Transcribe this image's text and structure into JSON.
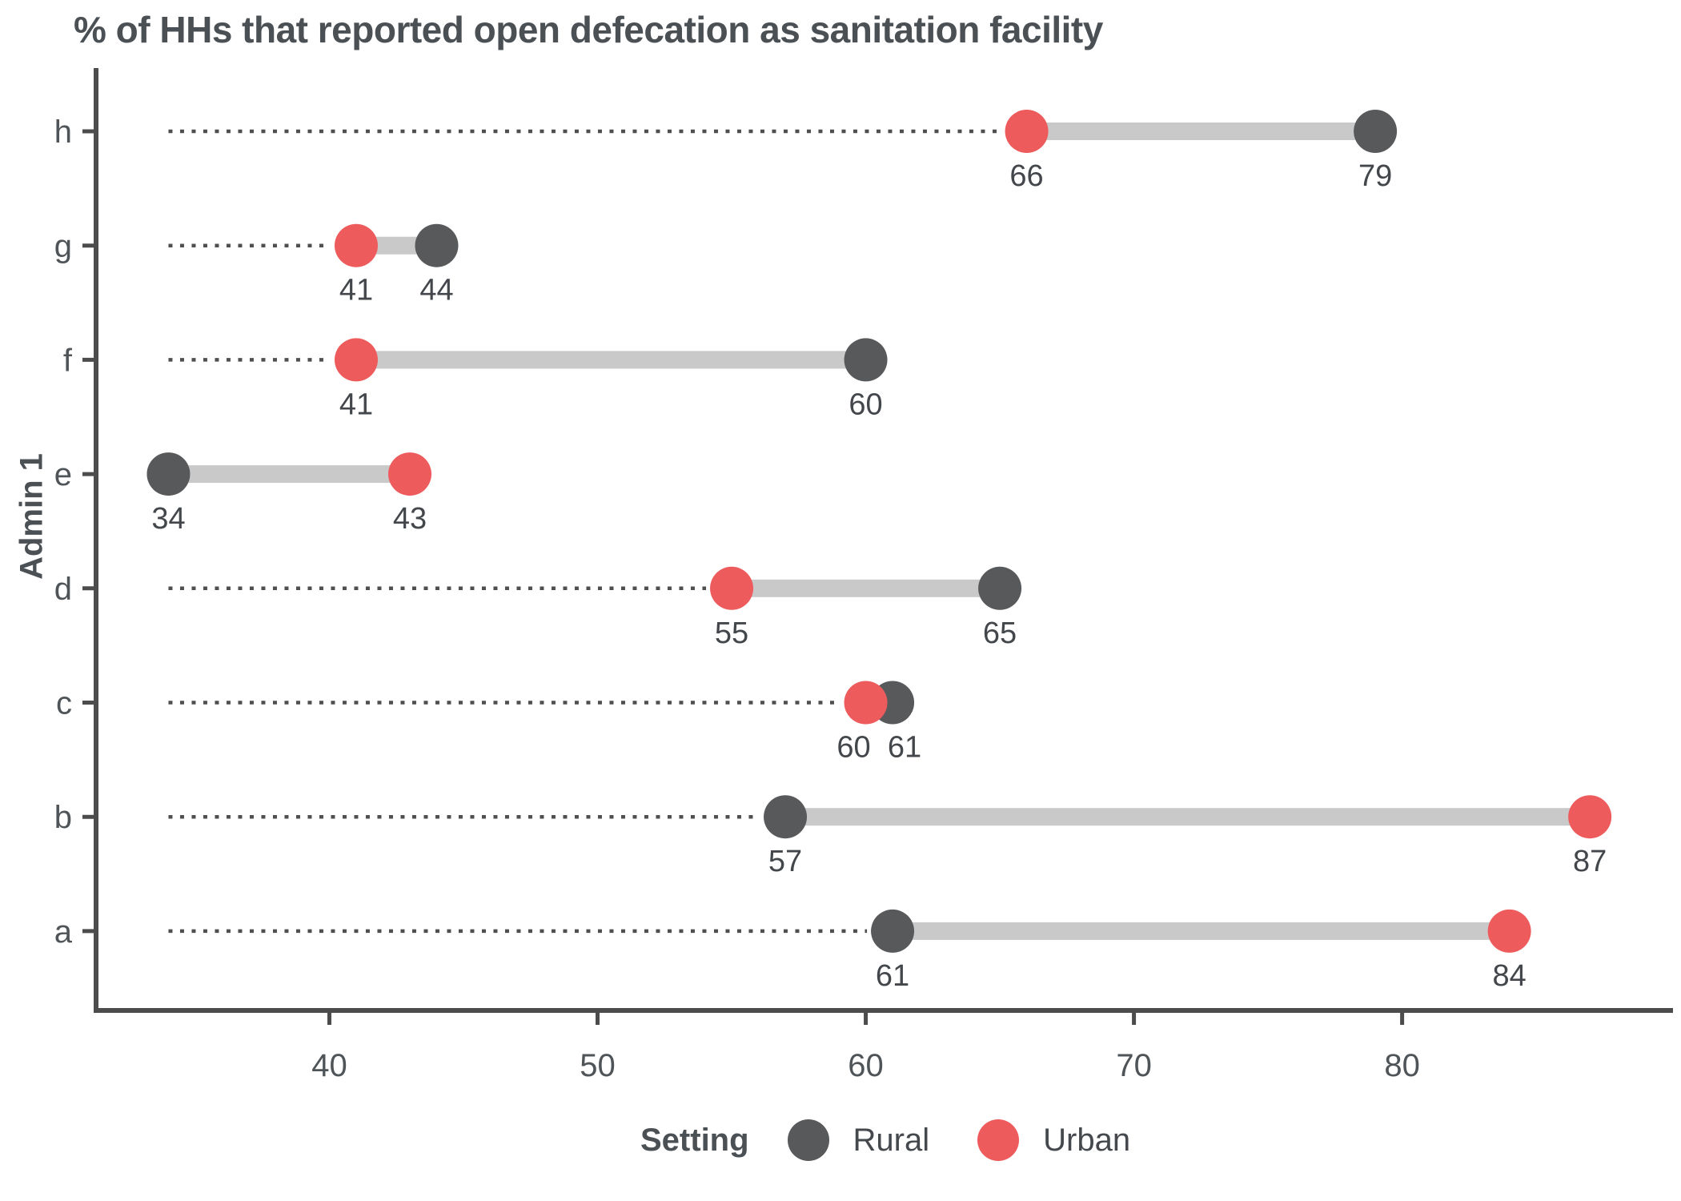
{
  "chart_data": {
    "type": "dumbbell",
    "title": "% of HHs that reported open defecation as sanitation facility",
    "ylabel": "Admin 1",
    "xlabel": "",
    "categories": [
      "h",
      "g",
      "f",
      "e",
      "d",
      "c",
      "b",
      "a"
    ],
    "series": [
      {
        "name": "Rural",
        "color": "#58595b",
        "values": [
          79,
          44,
          60,
          34,
          65,
          61,
          57,
          61
        ]
      },
      {
        "name": "Urban",
        "color": "#ee5b5c",
        "values": [
          66,
          41,
          41,
          43,
          55,
          60,
          87,
          84
        ]
      }
    ],
    "x_ticks": [
      40,
      50,
      60,
      70,
      80
    ],
    "xlim": [
      31.3,
      90.1
    ],
    "grid": false,
    "leader_origin": 34,
    "legend": {
      "title": "Setting",
      "position": "bottom",
      "entries": [
        "Rural",
        "Urban"
      ]
    }
  },
  "colors": {
    "rural": "#58595b",
    "urban": "#ee5b5c",
    "connector": "#c9c9c9",
    "leader": "#4f4f4f",
    "axis": "#4c4c4c",
    "value_text": "#43474b",
    "tick_text": "#4f5458",
    "title_text": "#4b5055"
  }
}
